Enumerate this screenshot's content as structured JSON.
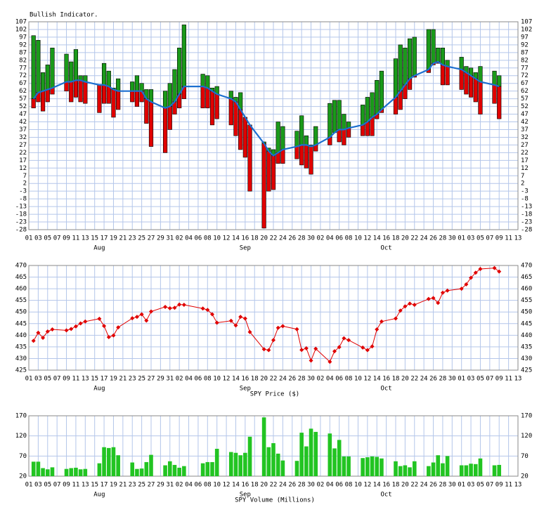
{
  "chart_data": [
    {
      "type": "range",
      "title": "Bullish Indicator.",
      "xlim": [
        1,
        105
      ],
      "xticks": [
        {
          "value": 1,
          "label": "01"
        },
        {
          "value": 3,
          "label": "03"
        },
        {
          "value": 5,
          "label": "05"
        },
        {
          "value": 7,
          "label": "07"
        },
        {
          "value": 9,
          "label": "09"
        },
        {
          "value": 11,
          "label": "11"
        },
        {
          "value": 13,
          "label": "13"
        },
        {
          "value": 15,
          "label": "15"
        },
        {
          "value": 17,
          "label": "17"
        },
        {
          "value": 19,
          "label": "19"
        },
        {
          "value": 21,
          "label": "21"
        },
        {
          "value": 23,
          "label": "23"
        },
        {
          "value": 25,
          "label": "25"
        },
        {
          "value": 27,
          "label": "27"
        },
        {
          "value": 29,
          "label": "29"
        },
        {
          "value": 31,
          "label": "31"
        },
        {
          "value": 33,
          "label": "02"
        },
        {
          "value": 35,
          "label": "04"
        },
        {
          "value": 37,
          "label": "06"
        },
        {
          "value": 39,
          "label": "08"
        },
        {
          "value": 41,
          "label": "10"
        },
        {
          "value": 43,
          "label": "12"
        },
        {
          "value": 45,
          "label": "14"
        },
        {
          "value": 47,
          "label": "16"
        },
        {
          "value": 49,
          "label": "18"
        },
        {
          "value": 51,
          "label": "20"
        },
        {
          "value": 53,
          "label": "22"
        },
        {
          "value": 55,
          "label": "24"
        },
        {
          "value": 57,
          "label": "26"
        },
        {
          "value": 59,
          "label": "28"
        },
        {
          "value": 61,
          "label": "30"
        },
        {
          "value": 63,
          "label": "02"
        },
        {
          "value": 65,
          "label": "04"
        },
        {
          "value": 67,
          "label": "06"
        },
        {
          "value": 69,
          "label": "08"
        },
        {
          "value": 71,
          "label": "10"
        },
        {
          "value": 73,
          "label": "12"
        },
        {
          "value": 75,
          "label": "14"
        },
        {
          "value": 77,
          "label": "16"
        },
        {
          "value": 79,
          "label": "18"
        },
        {
          "value": 81,
          "label": "20"
        },
        {
          "value": 83,
          "label": "22"
        },
        {
          "value": 85,
          "label": "24"
        },
        {
          "value": 87,
          "label": "26"
        },
        {
          "value": 89,
          "label": "28"
        },
        {
          "value": 91,
          "label": "30"
        },
        {
          "value": 93,
          "label": "01"
        },
        {
          "value": 95,
          "label": "03"
        },
        {
          "value": 97,
          "label": "05"
        },
        {
          "value": 99,
          "label": "07"
        },
        {
          "value": 101,
          "label": "09"
        },
        {
          "value": 103,
          "label": "11"
        },
        {
          "value": 105,
          "label": "13"
        }
      ],
      "month_labels": [
        {
          "value": 16,
          "label": "Aug"
        },
        {
          "value": 47,
          "label": "Sep"
        },
        {
          "value": 77,
          "label": "Oct"
        }
      ],
      "x": [
        2,
        3,
        4,
        5,
        6,
        9,
        10,
        11,
        12,
        13,
        16,
        17,
        18,
        19,
        20,
        23,
        24,
        25,
        26,
        27,
        30,
        31,
        32,
        33,
        34,
        38,
        39,
        40,
        41,
        44,
        45,
        46,
        47,
        48,
        51,
        52,
        53,
        54,
        55,
        58,
        59,
        60,
        61,
        62,
        65,
        66,
        67,
        68,
        69,
        72,
        73,
        74,
        75,
        76,
        79,
        80,
        81,
        82,
        83,
        86,
        87,
        88,
        89,
        90,
        93,
        94,
        95,
        96,
        97,
        100,
        101
      ],
      "values": [
        57,
        61,
        62,
        63,
        64,
        68,
        68,
        69,
        69,
        68,
        66,
        66,
        65,
        63,
        62,
        62,
        62,
        62,
        57,
        55,
        51,
        52,
        55,
        60,
        65,
        65,
        64,
        62,
        60,
        57,
        55,
        50,
        45,
        40,
        28,
        23,
        20,
        22,
        24,
        26,
        27,
        27,
        26,
        27,
        32,
        35,
        37,
        37,
        38,
        40,
        42,
        45,
        47,
        50,
        58,
        62,
        66,
        70,
        72,
        76,
        80,
        81,
        79,
        78,
        76,
        74,
        72,
        70,
        68,
        66,
        65
      ],
      "high": [
        98,
        95,
        74,
        79,
        90,
        86,
        81,
        89,
        72,
        72,
        66,
        80,
        75,
        64,
        70,
        68,
        72,
        67,
        63,
        63,
        62,
        67,
        76,
        90,
        105,
        73,
        72,
        64,
        65,
        62,
        58,
        61,
        43,
        40,
        29,
        25,
        24,
        42,
        39,
        36,
        46,
        33,
        27,
        39,
        54,
        56,
        56,
        47,
        42,
        53,
        58,
        61,
        69,
        75,
        83,
        92,
        90,
        96,
        97,
        102,
        102,
        90,
        90,
        82,
        84,
        78,
        77,
        74,
        78,
        75,
        72
      ],
      "low": [
        51,
        55,
        49,
        55,
        60,
        62,
        55,
        58,
        55,
        54,
        48,
        54,
        54,
        45,
        50,
        55,
        52,
        55,
        41,
        26,
        22,
        37,
        47,
        51,
        57,
        51,
        51,
        40,
        44,
        40,
        33,
        24,
        19,
        -3,
        -27,
        -3,
        -2,
        15,
        15,
        18,
        14,
        12,
        8,
        23,
        27,
        37,
        29,
        27,
        32,
        33,
        33,
        33,
        44,
        48,
        47,
        50,
        57,
        63,
        71,
        74,
        79,
        80,
        66,
        66,
        63,
        60,
        58,
        55,
        47,
        54,
        44
      ],
      "up_color": "#1a9a1a",
      "down_color": "#e00000",
      "line_color": "#1c6fd0",
      "ylim": [
        -28,
        107
      ],
      "yticks": [
        107,
        102,
        97,
        92,
        87,
        82,
        77,
        72,
        67,
        62,
        57,
        52,
        47,
        42,
        37,
        32,
        27,
        22,
        17,
        12,
        7,
        2,
        -3,
        -8,
        -13,
        -18,
        -23,
        -28
      ],
      "grid": true
    },
    {
      "type": "line",
      "x_label": "SPY Price ($)",
      "values": [
        437.6,
        441.1,
        438.9,
        441.6,
        442.5,
        442.1,
        442.7,
        443.8,
        445.1,
        445.9,
        447.1,
        444.0,
        439.2,
        439.9,
        443.4,
        447.3,
        447.9,
        449.0,
        446.3,
        450.2,
        452.2,
        451.6,
        451.8,
        453.2,
        453.1,
        451.5,
        450.9,
        449.0,
        445.4,
        446.2,
        444.2,
        447.9,
        447.2,
        441.4,
        434.0,
        433.6,
        437.9,
        443.2,
        443.9,
        442.6,
        433.7,
        434.4,
        429.1,
        434.2,
        428.6,
        433.1,
        434.9,
        438.7,
        437.9,
        434.7,
        433.6,
        435.2,
        442.5,
        445.9,
        447.2,
        450.6,
        452.4,
        453.6,
        453.1,
        455.6,
        456.0,
        453.9,
        458.3,
        459.2,
        460.0,
        461.9,
        464.7,
        466.9,
        468.5,
        468.9,
        467.4
      ],
      "color": "#e00000",
      "ylim": [
        425,
        470
      ],
      "yticks": [
        425,
        430,
        435,
        440,
        445,
        450,
        455,
        460,
        465,
        470
      ],
      "grid": true
    },
    {
      "type": "bar",
      "x_label": "SPY Volume (Millions)",
      "values": [
        56,
        56,
        40,
        37,
        42,
        38,
        40,
        41,
        37,
        38,
        52,
        92,
        90,
        92,
        72,
        54,
        38,
        39,
        55,
        73,
        47,
        57,
        48,
        41,
        45,
        52,
        55,
        55,
        88,
        80,
        78,
        72,
        78,
        118,
        166,
        92,
        102,
        76,
        59,
        58,
        128,
        94,
        138,
        130,
        126,
        89,
        110,
        69,
        69,
        65,
        67,
        69,
        68,
        64,
        57,
        45,
        47,
        42,
        57,
        45,
        54,
        72,
        52,
        70,
        47,
        47,
        51,
        50,
        64,
        47,
        48
      ],
      "color": "#22c422",
      "ylim": [
        20,
        170
      ],
      "yticks": [
        20,
        70,
        120,
        170
      ],
      "grid": true
    }
  ]
}
